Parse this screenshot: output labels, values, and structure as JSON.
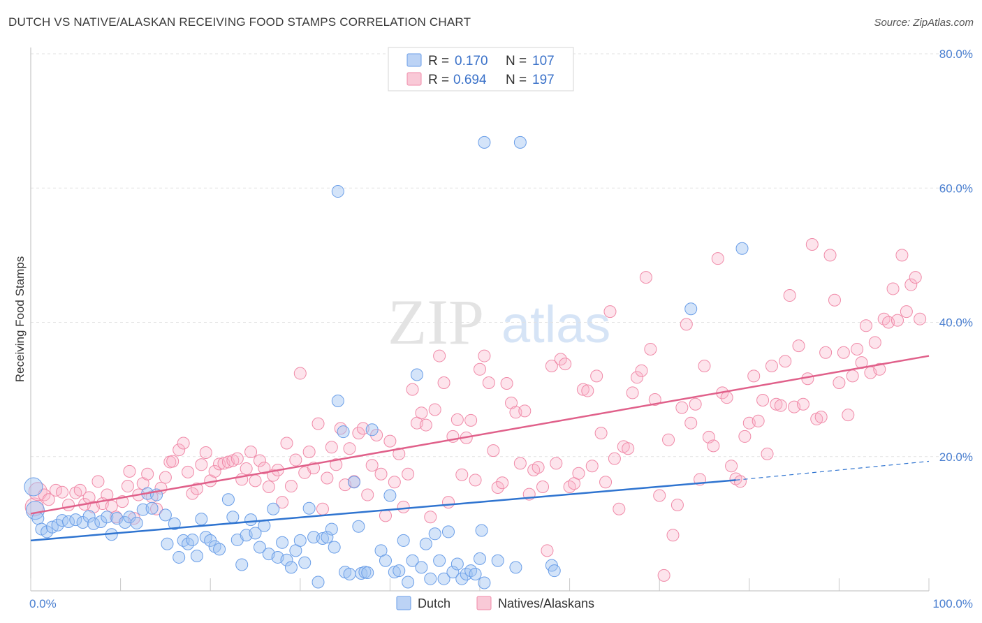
{
  "title": "DUTCH VS NATIVE/ALASKAN RECEIVING FOOD STAMPS CORRELATION CHART",
  "source": "Source: ZipAtlas.com",
  "watermark": {
    "zip": "ZIP",
    "atlas": "atlas"
  },
  "colors": {
    "dutch": "#6a9ee8",
    "natives": "#f08aa8",
    "dutch_line": "#2f74d0",
    "natives_line": "#e0608a"
  },
  "legend": {
    "rows": [
      {
        "r_label": "R =",
        "r_value": "0.170",
        "n_label": "N =",
        "n_value": "107"
      },
      {
        "r_label": "R =",
        "r_value": "0.694",
        "n_label": "N =",
        "n_value": "197"
      }
    ]
  },
  "chart_data": {
    "type": "scatter",
    "title": "DUTCH VS NATIVE/ALASKAN RECEIVING FOOD STAMPS CORRELATION CHART",
    "xlabel": "",
    "ylabel": "Receiving Food Stamps",
    "xlim": [
      0,
      100
    ],
    "ylim": [
      0,
      80
    ],
    "x_tick_labels": [
      "0.0%",
      "100.0%"
    ],
    "y_ticks": [
      20,
      40,
      60,
      80
    ],
    "y_tick_labels": [
      "20.0%",
      "40.0%",
      "60.0%",
      "80.0%"
    ],
    "series": [
      {
        "name": "Dutch",
        "R": 0.17,
        "N": 107,
        "trend": {
          "x0": 0,
          "y0": 7.5,
          "x1": 78.5,
          "y1": 16.5,
          "dashed_to_x": 100,
          "dashed_to_y": 19.3
        },
        "points": [
          [
            0.3,
            15.5
          ],
          [
            0.5,
            12.0
          ],
          [
            0.8,
            10.8
          ],
          [
            1.2,
            9.2
          ],
          [
            1.8,
            8.8
          ],
          [
            2.4,
            9.5
          ],
          [
            3.0,
            9.8
          ],
          [
            3.5,
            10.5
          ],
          [
            4.2,
            10.3
          ],
          [
            5.0,
            10.6
          ],
          [
            5.8,
            10.2
          ],
          [
            6.5,
            11.1
          ],
          [
            7.0,
            10.0
          ],
          [
            7.8,
            10.3
          ],
          [
            8.5,
            11.0
          ],
          [
            9.0,
            8.4
          ],
          [
            9.6,
            10.8
          ],
          [
            10.5,
            10.2
          ],
          [
            11.0,
            11.0
          ],
          [
            11.8,
            10.1
          ],
          [
            12.5,
            12.1
          ],
          [
            13.0,
            14.5
          ],
          [
            13.5,
            12.3
          ],
          [
            14.0,
            14.3
          ],
          [
            15.0,
            11.3
          ],
          [
            16.0,
            10.0
          ],
          [
            15.2,
            7.0
          ],
          [
            16.5,
            5.0
          ],
          [
            17.0,
            7.5
          ],
          [
            17.5,
            7.0
          ],
          [
            18.0,
            7.6
          ],
          [
            18.5,
            5.2
          ],
          [
            19.0,
            10.7
          ],
          [
            19.5,
            8.0
          ],
          [
            20.0,
            7.5
          ],
          [
            20.5,
            6.6
          ],
          [
            21.0,
            6.2
          ],
          [
            22.0,
            13.6
          ],
          [
            22.5,
            11.0
          ],
          [
            23.0,
            7.6
          ],
          [
            23.5,
            3.9
          ],
          [
            24.0,
            8.3
          ],
          [
            24.5,
            10.6
          ],
          [
            25.0,
            8.6
          ],
          [
            25.5,
            6.5
          ],
          [
            26.0,
            9.7
          ],
          [
            26.5,
            5.5
          ],
          [
            27.0,
            12.2
          ],
          [
            27.5,
            5.0
          ],
          [
            28.0,
            7.2
          ],
          [
            28.5,
            4.6
          ],
          [
            29.0,
            3.5
          ],
          [
            29.5,
            6.0
          ],
          [
            30.0,
            7.5
          ],
          [
            30.5,
            4.2
          ],
          [
            31.0,
            12.3
          ],
          [
            31.5,
            8.0
          ],
          [
            32.0,
            1.3
          ],
          [
            32.5,
            7.8
          ],
          [
            33.0,
            8.0
          ],
          [
            33.5,
            9.2
          ],
          [
            33.8,
            6.5
          ],
          [
            34.2,
            28.3
          ],
          [
            34.8,
            23.7
          ],
          [
            35.0,
            2.8
          ],
          [
            35.5,
            2.5
          ],
          [
            36.0,
            16.2
          ],
          [
            36.5,
            9.6
          ],
          [
            36.8,
            2.6
          ],
          [
            37.2,
            2.8
          ],
          [
            37.5,
            2.7
          ],
          [
            38.0,
            24.0
          ],
          [
            39.0,
            6.0
          ],
          [
            39.5,
            4.5
          ],
          [
            40.0,
            14.2
          ],
          [
            40.5,
            2.8
          ],
          [
            41.0,
            3.0
          ],
          [
            41.5,
            7.5
          ],
          [
            42.0,
            1.3
          ],
          [
            42.5,
            4.5
          ],
          [
            43.0,
            32.2
          ],
          [
            43.5,
            3.5
          ],
          [
            44.0,
            7.0
          ],
          [
            44.5,
            1.8
          ],
          [
            45.0,
            8.5
          ],
          [
            45.5,
            4.5
          ],
          [
            46.0,
            1.8
          ],
          [
            46.5,
            8.8
          ],
          [
            47.0,
            2.8
          ],
          [
            47.5,
            4.0
          ],
          [
            48.0,
            1.8
          ],
          [
            48.5,
            2.5
          ],
          [
            49.0,
            3.0
          ],
          [
            49.5,
            2.5
          ],
          [
            50.0,
            4.8
          ],
          [
            50.5,
            1.2
          ],
          [
            50.2,
            9.0
          ],
          [
            52.0,
            4.5
          ],
          [
            54.0,
            3.5
          ],
          [
            58.0,
            3.8
          ],
          [
            58.3,
            3.0
          ],
          [
            34.2,
            59.5
          ],
          [
            50.5,
            66.8
          ],
          [
            54.5,
            66.8
          ],
          [
            73.5,
            42.0
          ],
          [
            79.2,
            51.0
          ]
        ]
      },
      {
        "name": "Natives/Alaskans",
        "R": 0.694,
        "N": 197,
        "trend": {
          "x0": 0,
          "y0": 11.5,
          "x1": 100,
          "y1": 35.0
        },
        "points": [
          [
            0.4,
            12.5
          ],
          [
            0.8,
            14.8
          ],
          [
            1.5,
            14.3
          ],
          [
            2.0,
            13.6
          ],
          [
            2.8,
            15.0
          ],
          [
            3.5,
            14.7
          ],
          [
            4.2,
            12.8
          ],
          [
            5.0,
            14.6
          ],
          [
            5.5,
            15.0
          ],
          [
            6.0,
            12.9
          ],
          [
            6.5,
            13.9
          ],
          [
            7.0,
            12.5
          ],
          [
            7.5,
            16.3
          ],
          [
            8.0,
            13.0
          ],
          [
            8.5,
            14.3
          ],
          [
            9.0,
            12.6
          ],
          [
            9.5,
            11.0
          ],
          [
            10.2,
            13.3
          ],
          [
            10.8,
            15.6
          ],
          [
            11.0,
            17.8
          ],
          [
            11.5,
            10.8
          ],
          [
            12.0,
            14.3
          ],
          [
            12.5,
            16.0
          ],
          [
            13.0,
            17.4
          ],
          [
            13.5,
            14.0
          ],
          [
            14.0,
            12.2
          ],
          [
            14.5,
            15.3
          ],
          [
            15.0,
            16.9
          ],
          [
            15.5,
            19.2
          ],
          [
            15.8,
            19.3
          ],
          [
            16.5,
            21.0
          ],
          [
            17.0,
            22.0
          ],
          [
            17.5,
            17.7
          ],
          [
            18.0,
            14.5
          ],
          [
            18.5,
            15.2
          ],
          [
            19.0,
            18.8
          ],
          [
            19.5,
            20.6
          ],
          [
            20.0,
            16.4
          ],
          [
            20.5,
            17.8
          ],
          [
            21.0,
            18.9
          ],
          [
            21.5,
            19.0
          ],
          [
            22.0,
            19.2
          ],
          [
            22.5,
            19.4
          ],
          [
            23.0,
            19.7
          ],
          [
            23.5,
            16.6
          ],
          [
            24.0,
            18.2
          ],
          [
            24.5,
            20.7
          ],
          [
            25.0,
            16.4
          ],
          [
            25.5,
            19.4
          ],
          [
            26.0,
            18.3
          ],
          [
            26.5,
            15.5
          ],
          [
            27.0,
            17.2
          ],
          [
            27.5,
            18.0
          ],
          [
            28.0,
            13.2
          ],
          [
            28.5,
            22.0
          ],
          [
            29.0,
            15.6
          ],
          [
            29.5,
            19.5
          ],
          [
            30.0,
            32.4
          ],
          [
            30.5,
            17.6
          ],
          [
            31.0,
            20.7
          ],
          [
            31.5,
            18.3
          ],
          [
            32.0,
            24.9
          ],
          [
            32.5,
            12.2
          ],
          [
            33.0,
            16.8
          ],
          [
            33.5,
            21.4
          ],
          [
            34.0,
            18.8
          ],
          [
            34.5,
            24.2
          ],
          [
            35.0,
            15.8
          ],
          [
            35.5,
            21.2
          ],
          [
            36.0,
            16.3
          ],
          [
            36.5,
            23.5
          ],
          [
            37.0,
            24.2
          ],
          [
            37.5,
            14.3
          ],
          [
            38.0,
            18.7
          ],
          [
            38.5,
            23.2
          ],
          [
            39.0,
            17.4
          ],
          [
            39.5,
            11.2
          ],
          [
            40.0,
            22.3
          ],
          [
            40.5,
            16.2
          ],
          [
            41.0,
            20.4
          ],
          [
            41.5,
            12.5
          ],
          [
            42.0,
            17.4
          ],
          [
            42.5,
            30.0
          ],
          [
            43.0,
            25.0
          ],
          [
            43.5,
            26.5
          ],
          [
            44.0,
            24.7
          ],
          [
            44.5,
            11.0
          ],
          [
            45.0,
            27.0
          ],
          [
            45.5,
            35.0
          ],
          [
            46.0,
            31.0
          ],
          [
            46.5,
            13.2
          ],
          [
            47.0,
            23.0
          ],
          [
            47.5,
            25.5
          ],
          [
            48.0,
            17.3
          ],
          [
            48.5,
            22.8
          ],
          [
            49.0,
            25.4
          ],
          [
            49.5,
            16.5
          ],
          [
            50.0,
            33.0
          ],
          [
            50.5,
            35.0
          ],
          [
            51.0,
            31.0
          ],
          [
            51.5,
            20.9
          ],
          [
            52.0,
            15.4
          ],
          [
            52.5,
            16.1
          ],
          [
            53.0,
            30.9
          ],
          [
            53.5,
            28.0
          ],
          [
            54.0,
            26.6
          ],
          [
            54.5,
            19.0
          ],
          [
            55.0,
            26.8
          ],
          [
            55.5,
            14.4
          ],
          [
            56.0,
            18.0
          ],
          [
            56.5,
            18.4
          ],
          [
            57.0,
            15.5
          ],
          [
            57.5,
            6.0
          ],
          [
            58.0,
            33.5
          ],
          [
            58.5,
            19.0
          ],
          [
            59.0,
            34.5
          ],
          [
            59.5,
            33.8
          ],
          [
            60.0,
            15.5
          ],
          [
            60.5,
            16.0
          ],
          [
            61.0,
            17.5
          ],
          [
            61.5,
            30.0
          ],
          [
            62.0,
            29.8
          ],
          [
            62.5,
            18.6
          ],
          [
            63.0,
            32.0
          ],
          [
            63.5,
            23.5
          ],
          [
            64.0,
            16.2
          ],
          [
            64.5,
            41.6
          ],
          [
            65.0,
            19.7
          ],
          [
            65.5,
            12.2
          ],
          [
            66.0,
            21.5
          ],
          [
            66.5,
            21.2
          ],
          [
            67.0,
            29.5
          ],
          [
            67.5,
            31.8
          ],
          [
            68.0,
            32.8
          ],
          [
            68.5,
            46.7
          ],
          [
            69.0,
            36.0
          ],
          [
            69.5,
            28.5
          ],
          [
            70.0,
            14.2
          ],
          [
            70.5,
            2.3
          ],
          [
            71.0,
            22.5
          ],
          [
            71.5,
            8.3
          ],
          [
            72.0,
            12.8
          ],
          [
            72.5,
            27.3
          ],
          [
            73.0,
            39.7
          ],
          [
            73.5,
            25.0
          ],
          [
            74.0,
            27.8
          ],
          [
            74.5,
            16.6
          ],
          [
            75.0,
            33.5
          ],
          [
            75.5,
            22.9
          ],
          [
            76.0,
            21.6
          ],
          [
            76.5,
            49.5
          ],
          [
            77.0,
            29.5
          ],
          [
            77.5,
            28.8
          ],
          [
            78.0,
            18.6
          ],
          [
            78.5,
            16.7
          ],
          [
            79.0,
            16.3
          ],
          [
            79.5,
            23.0
          ],
          [
            80.0,
            25.0
          ],
          [
            80.5,
            32.0
          ],
          [
            81.0,
            25.3
          ],
          [
            81.5,
            28.4
          ],
          [
            82.0,
            20.4
          ],
          [
            82.5,
            33.5
          ],
          [
            83.0,
            27.8
          ],
          [
            83.5,
            27.6
          ],
          [
            84.0,
            34.2
          ],
          [
            84.5,
            44.0
          ],
          [
            85.0,
            27.4
          ],
          [
            85.5,
            36.5
          ],
          [
            86.0,
            27.8
          ],
          [
            86.5,
            31.6
          ],
          [
            87.0,
            51.6
          ],
          [
            87.5,
            25.6
          ],
          [
            88.0,
            25.9
          ],
          [
            88.5,
            35.5
          ],
          [
            89.0,
            50.0
          ],
          [
            89.5,
            43.3
          ],
          [
            90.0,
            31.0
          ],
          [
            90.5,
            35.5
          ],
          [
            91.0,
            26.2
          ],
          [
            91.5,
            32.0
          ],
          [
            92.0,
            36.0
          ],
          [
            92.5,
            34.0
          ],
          [
            93.0,
            39.5
          ],
          [
            93.5,
            32.5
          ],
          [
            94.0,
            37.0
          ],
          [
            94.5,
            33.0
          ],
          [
            95.0,
            40.5
          ],
          [
            95.5,
            40.0
          ],
          [
            96.0,
            45.0
          ],
          [
            96.5,
            40.3
          ],
          [
            97.0,
            50.0
          ],
          [
            97.5,
            41.6
          ],
          [
            98.0,
            45.6
          ],
          [
            98.5,
            46.7
          ],
          [
            99.0,
            40.5
          ]
        ]
      }
    ]
  },
  "bottom_legend": {
    "dutch": "Dutch",
    "natives": "Natives/Alaskans"
  }
}
